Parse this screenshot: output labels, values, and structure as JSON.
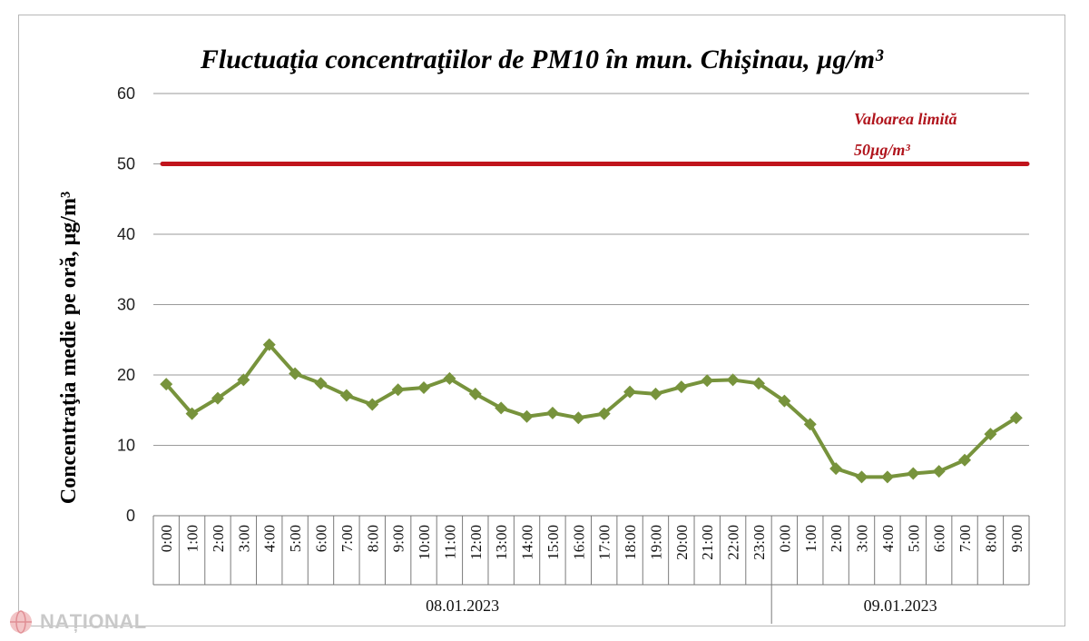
{
  "watermark": {
    "text": "NAȚIONAL",
    "icon": "globe-logo-icon"
  },
  "chart_data": {
    "type": "line",
    "title": "Fluctuaţia concentraţiilor de PM10 în mun. Chişinau, µg/m³",
    "xlabel": "",
    "ylabel": "Concentraţia medie pe oră, µg/m³",
    "ylim": [
      0,
      60
    ],
    "yticks": [
      0,
      10,
      20,
      30,
      40,
      50,
      60
    ],
    "grid": true,
    "categories": [
      "0:00",
      "1:00",
      "2:00",
      "3:00",
      "4:00",
      "5:00",
      "6:00",
      "7:00",
      "8:00",
      "9:00",
      "10:00",
      "11:00",
      "12:00",
      "13:00",
      "14:00",
      "15:00",
      "16:00",
      "17:00",
      "18:00",
      "19:00",
      "20:00",
      "21:00",
      "22:00",
      "23:00",
      "0:00",
      "1:00",
      "2:00",
      "3:00",
      "4:00",
      "5:00",
      "6:00",
      "7:00",
      "8:00",
      "9:00"
    ],
    "groups": [
      {
        "label": "08.01.2023",
        "count": 24
      },
      {
        "label": "09.01.2023",
        "count": 10
      }
    ],
    "series": [
      {
        "values": [
          18.7,
          14.5,
          16.7,
          19.3,
          24.3,
          20.2,
          18.8,
          17.1,
          15.8,
          17.9,
          18.2,
          19.5,
          17.3,
          15.3,
          14.1,
          14.6,
          13.9,
          14.5,
          17.6,
          17.3,
          18.3,
          19.2,
          19.3,
          18.8,
          16.3,
          13.0,
          6.7,
          5.5,
          5.5,
          6.0,
          6.3,
          7.9,
          11.6,
          13.9
        ],
        "color": "#77933c"
      }
    ],
    "limit_line": {
      "value": 50,
      "color": "#c0141c",
      "label_line1": "Valoarea limită",
      "label_line2": "50µg/m³"
    }
  }
}
